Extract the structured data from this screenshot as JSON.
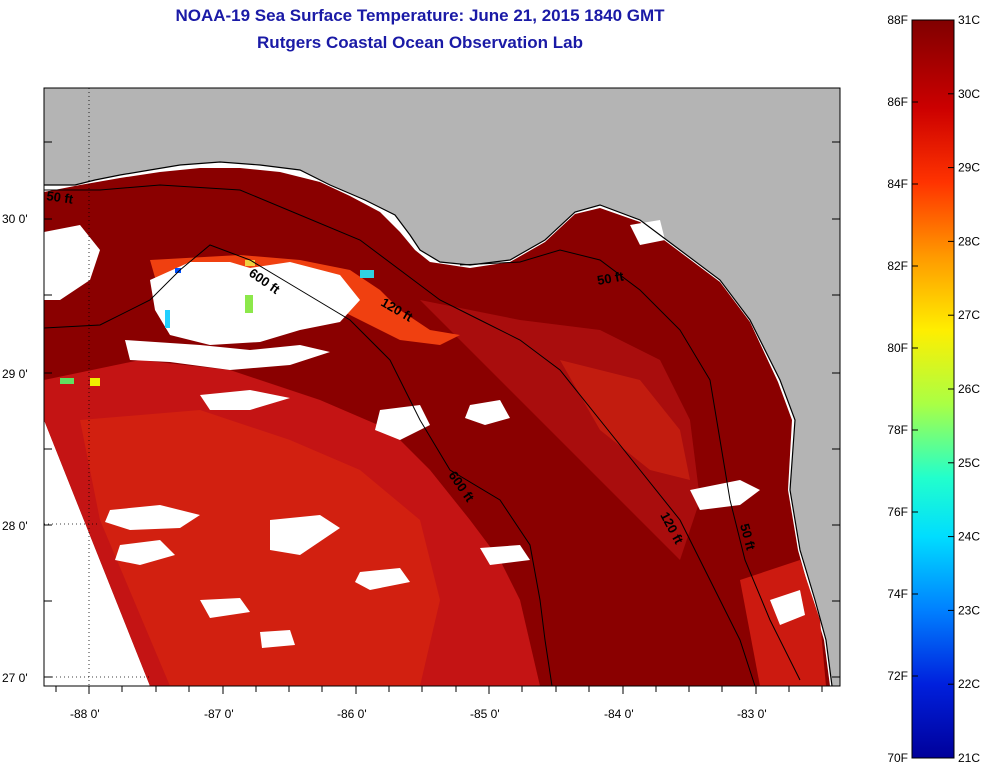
{
  "header": {
    "title": "NOAA-19 Sea Surface Temperature:  June 21, 2015 1840 GMT",
    "subtitle": "Rutgers Coastal Ocean Observation Lab"
  },
  "map": {
    "lat_labels": [
      "30 0'",
      "29 0'",
      "28 0'",
      "27 0'"
    ],
    "lon_labels": [
      "-88 0'",
      "-87 0'",
      "-86 0'",
      "-85 0'",
      "-84 0'",
      "-83 0'"
    ],
    "contour_labels": [
      "600 ft",
      "120 ft",
      "50 ft",
      "600 ft",
      "120 ft",
      "50 ft",
      "50 ft"
    ],
    "colors": {
      "land": "#b4b4b4",
      "cloud": "#ffffff",
      "warm": "#b81010",
      "hot": "#7e0000"
    }
  },
  "colorbar": {
    "f_labels": [
      "88F",
      "86F",
      "84F",
      "82F",
      "80F",
      "78F",
      "76F",
      "74F",
      "72F",
      "70F"
    ],
    "c_labels": [
      "31C",
      "30C",
      "29C",
      "28C",
      "27C",
      "26C",
      "25C",
      "24C",
      "23C",
      "22C",
      "21C"
    ]
  }
}
